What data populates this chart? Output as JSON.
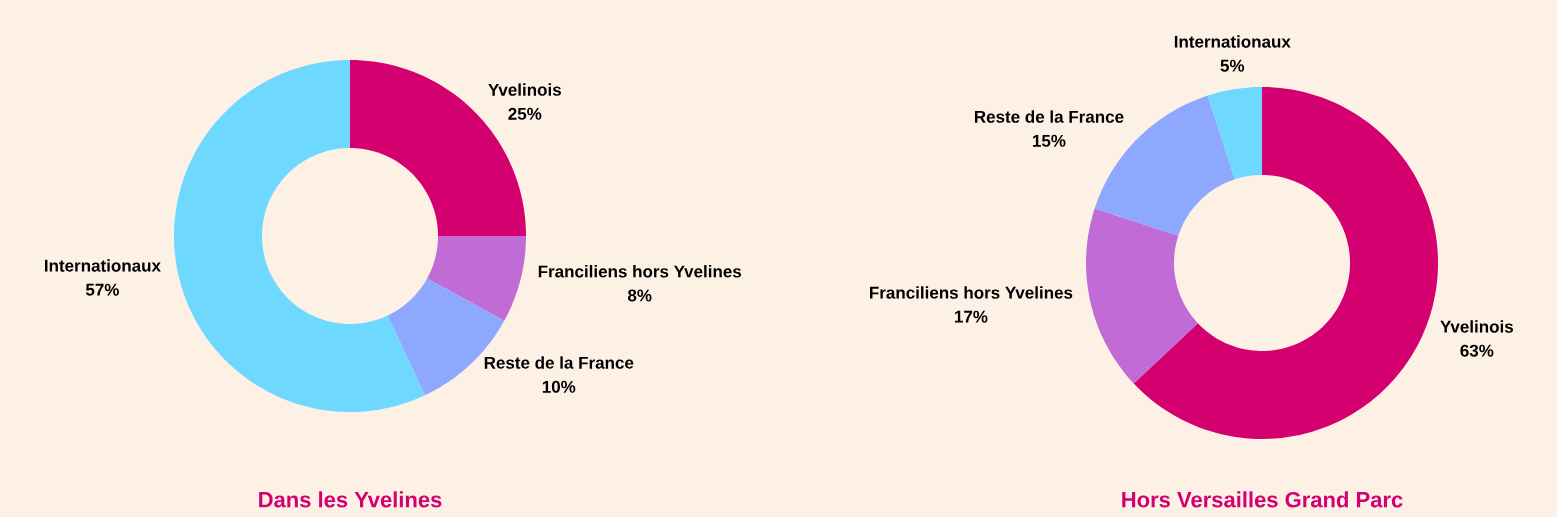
{
  "chart_data": [
    {
      "type": "donut",
      "title": "Dans les Yvelines",
      "categories": [
        "Yvelinois",
        "Franciliens hors Yvelines",
        "Reste de la France",
        "Internationaux"
      ],
      "values": [
        25,
        8,
        10,
        57
      ],
      "colors": [
        "#d4006f",
        "#c06bd6",
        "#8fa8ff",
        "#6ed8ff"
      ],
      "value_labels": [
        "25%",
        "8%",
        "10%",
        "57%"
      ]
    },
    {
      "type": "donut",
      "title": "Hors Versailles Grand Parc",
      "categories": [
        "Yvelinois",
        "Franciliens hors Yvelines",
        "Reste de la France",
        "Internationaux"
      ],
      "values": [
        63,
        17,
        15,
        5
      ],
      "colors": [
        "#d4006f",
        "#c06bd6",
        "#8fa8ff",
        "#6ed8ff"
      ],
      "value_labels": [
        "63%",
        "17%",
        "15%",
        "5%"
      ]
    }
  ]
}
